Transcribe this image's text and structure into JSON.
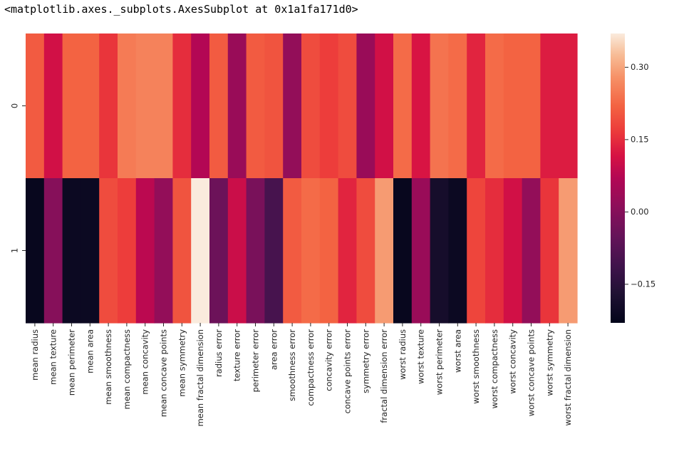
{
  "output_repr": "<matplotlib.axes._subplots.AxesSubplot at 0x1a1fa171d0>",
  "chart_data": {
    "type": "heatmap",
    "title": "",
    "xlabel": "",
    "ylabel": "",
    "rows": [
      "0",
      "1"
    ],
    "columns": [
      "mean radius",
      "mean texture",
      "mean perimeter",
      "mean area",
      "mean smoothness",
      "mean compactness",
      "mean concavity",
      "mean concave points",
      "mean symmetry",
      "mean fractal dimension",
      "radius error",
      "texture error",
      "perimeter error",
      "area error",
      "smoothness error",
      "compactness error",
      "concavity error",
      "concave points error",
      "symmetry error",
      "fractal dimension error",
      "worst radius",
      "worst texture",
      "worst perimeter",
      "worst area",
      "worst smoothness",
      "worst compactness",
      "worst concavity",
      "worst concave points",
      "worst symmetry",
      "worst fractal dimension"
    ],
    "values": [
      [
        0.21,
        0.11,
        0.22,
        0.22,
        0.16,
        0.25,
        0.26,
        0.26,
        0.15,
        0.07,
        0.21,
        0.03,
        0.21,
        0.2,
        0.02,
        0.19,
        0.17,
        0.19,
        0.03,
        0.11,
        0.23,
        0.12,
        0.24,
        0.23,
        0.14,
        0.23,
        0.22,
        0.22,
        0.13,
        0.13
      ],
      [
        -0.22,
        0.0,
        -0.21,
        -0.21,
        0.19,
        0.17,
        0.08,
        0.02,
        0.2,
        0.37,
        -0.04,
        0.1,
        -0.02,
        -0.1,
        0.21,
        0.23,
        0.22,
        0.14,
        0.19,
        0.29,
        -0.22,
        0.03,
        -0.19,
        -0.21,
        0.18,
        0.15,
        0.11,
        0.02,
        0.16,
        0.29
      ]
    ],
    "vmin": -0.23,
    "vmax": 0.37,
    "colormap": "rocket",
    "colorbar_ticks": [
      0.3,
      0.15,
      0.0,
      -0.15
    ],
    "colorbar_tick_labels": [
      "0.30",
      "0.15",
      "0.00",
      "−0.15"
    ]
  }
}
